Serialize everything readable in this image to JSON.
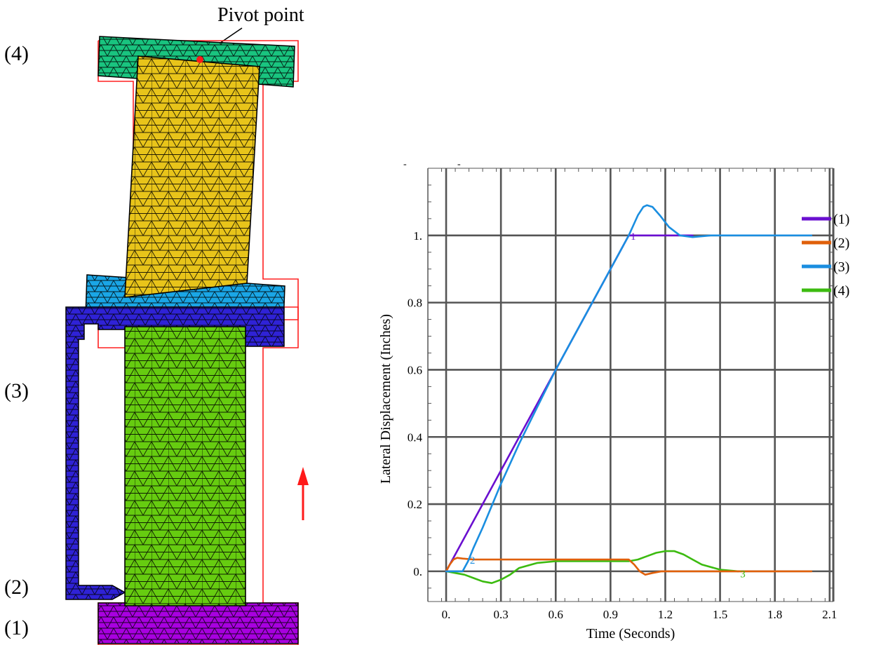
{
  "diagram": {
    "stage_labels": [
      "(4)",
      "(3)",
      "(2)",
      "(1)"
    ],
    "pivot_label": "Pivot point",
    "colors": {
      "block_4": "#19c47f",
      "block_3": "#2f22d6",
      "block_2": "#2f22d6",
      "block_1": "#a800e0",
      "upper_core": "#e8c41a",
      "upper_base": "#1aa6e6",
      "lower_core": "#66cc10",
      "outline": "#ff2020",
      "arrow": "#ff1a1a"
    }
  },
  "chart_data": {
    "type": "line",
    "title": "",
    "xlabel": "Time (Seconds)",
    "ylabel": "Lateral Displacement (Inches)",
    "xlim": [
      -0.1,
      2.12
    ],
    "ylim": [
      -0.09,
      1.2
    ],
    "xticks": [
      0,
      0.3,
      0.6,
      0.9,
      1.2,
      1.5,
      1.8,
      2.1
    ],
    "xtick_labels": [
      "0.",
      "0.3",
      "0.6",
      "0.9",
      "1.2",
      "1.5",
      "1.8",
      "2.1"
    ],
    "yticks": [
      0,
      0.2,
      0.4,
      0.6,
      0.8,
      1.0
    ],
    "ytick_labels": [
      "0.",
      "0.2",
      "0.4",
      "0.6",
      "0.8",
      "1."
    ],
    "grid": true,
    "legend_position": "right",
    "series": [
      {
        "name": "(1)",
        "color": "#6a0fd0",
        "x": [
          0,
          0.3,
          0.6,
          0.9,
          1.0,
          1.05,
          1.2,
          1.35
        ],
        "y": [
          0,
          0.3,
          0.6,
          0.9,
          1.0,
          1.0,
          1.0,
          1.0
        ]
      },
      {
        "name": "(2)",
        "color": "#e0600a",
        "x": [
          0,
          0.02,
          0.04,
          0.06,
          0.09,
          0.15,
          0.3,
          0.6,
          0.9,
          1.0,
          1.03,
          1.06,
          1.09,
          1.13,
          1.18,
          1.25,
          1.4,
          1.6,
          1.8,
          2.0
        ],
        "y": [
          0,
          0.02,
          0.035,
          0.04,
          0.038,
          0.035,
          0.035,
          0.035,
          0.035,
          0.035,
          0.02,
          0.0,
          -0.01,
          -0.005,
          0.0,
          0.0,
          0.0,
          0.0,
          0.0,
          0.0
        ]
      },
      {
        "name": "(3)",
        "color": "#1a8ee0",
        "x": [
          0,
          0.05,
          0.09,
          0.12,
          0.15,
          0.2,
          0.3,
          0.4,
          0.5,
          0.6,
          0.7,
          0.8,
          0.9,
          1.0,
          1.05,
          1.08,
          1.1,
          1.13,
          1.17,
          1.22,
          1.28,
          1.35,
          1.45,
          1.6,
          1.8,
          2.0
        ],
        "y": [
          0,
          0.0,
          0.0,
          0.03,
          0.07,
          0.13,
          0.26,
          0.38,
          0.49,
          0.6,
          0.7,
          0.8,
          0.9,
          1.0,
          1.06,
          1.085,
          1.09,
          1.085,
          1.06,
          1.025,
          1.0,
          0.995,
          1.0,
          1.0,
          1.0,
          1.0
        ]
      },
      {
        "name": "(4)",
        "color": "#3cbb10",
        "x": [
          0,
          0.05,
          0.1,
          0.15,
          0.2,
          0.25,
          0.3,
          0.35,
          0.4,
          0.5,
          0.6,
          0.8,
          1.0,
          1.05,
          1.1,
          1.15,
          1.2,
          1.25,
          1.3,
          1.35,
          1.4,
          1.5,
          1.6
        ],
        "y": [
          0,
          -0.005,
          -0.01,
          -0.02,
          -0.03,
          -0.035,
          -0.025,
          -0.01,
          0.01,
          0.025,
          0.03,
          0.03,
          0.03,
          0.035,
          0.045,
          0.055,
          0.06,
          0.06,
          0.05,
          0.035,
          0.02,
          0.005,
          0.0
        ]
      }
    ],
    "curve_labels": [
      {
        "text": "1",
        "x": 1.01,
        "y": 1.0,
        "color": "#6a0fd0"
      },
      {
        "text": "2",
        "x": 0.13,
        "y": 0.035,
        "color": "#1a8ee0"
      },
      {
        "text": "3",
        "x": 1.61,
        "y": -0.005,
        "color": "#3cbb10"
      }
    ],
    "top_marks": [
      "-",
      "-"
    ]
  }
}
